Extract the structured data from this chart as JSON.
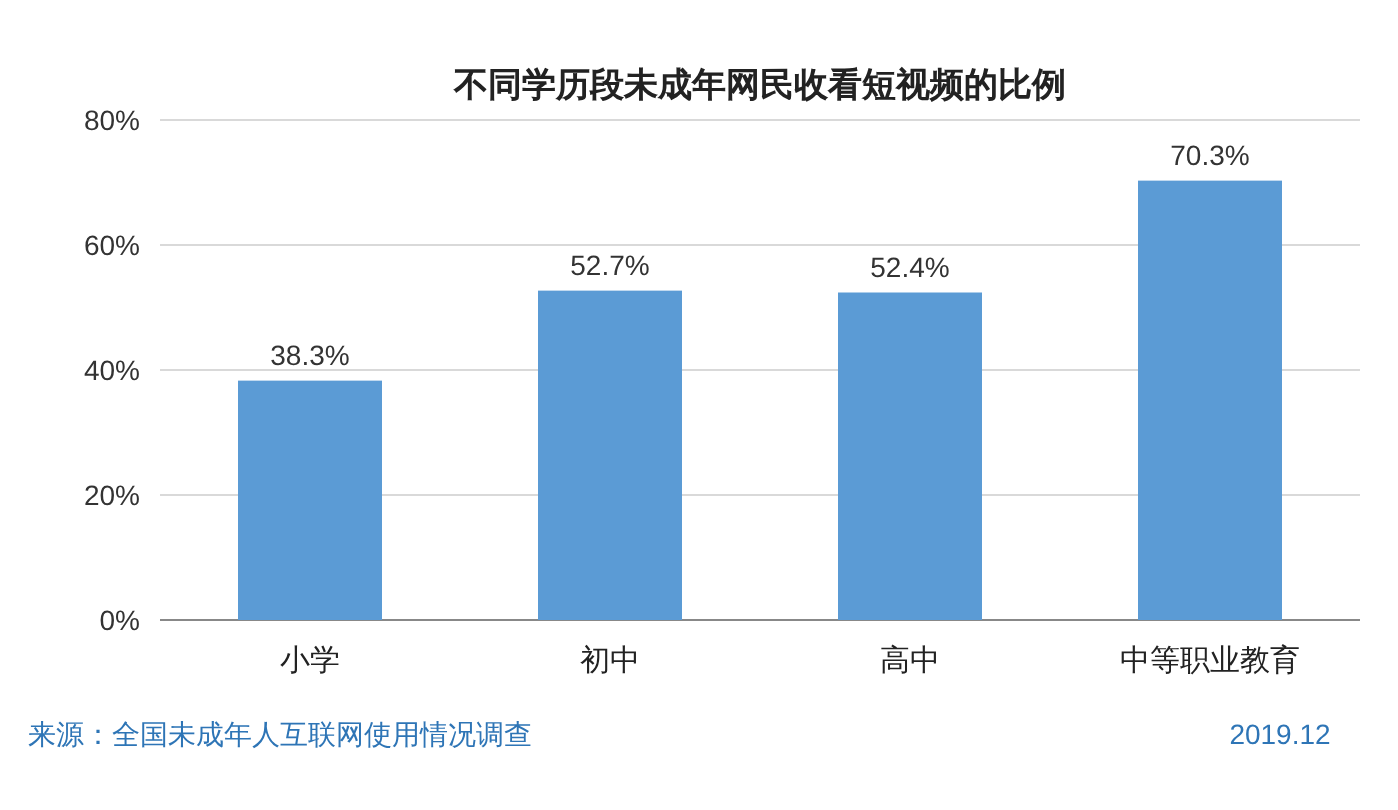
{
  "chart_data": {
    "type": "bar",
    "title": "不同学历段未成年网民收看短视频的比例",
    "categories": [
      "小学",
      "初中",
      "高中",
      "中等职业教育"
    ],
    "values": [
      38.3,
      52.7,
      52.4,
      70.3
    ],
    "value_labels": [
      "38.3%",
      "52.7%",
      "52.4%",
      "70.3%"
    ],
    "color": "#5b9bd5",
    "ylim": [
      0,
      80
    ],
    "yticks": [
      {
        "value": 0,
        "label": "0%"
      },
      {
        "value": 20,
        "label": "20%"
      },
      {
        "value": 40,
        "label": "40%"
      },
      {
        "value": 60,
        "label": "60%"
      },
      {
        "value": 80,
        "label": "80%"
      }
    ],
    "grid": "y",
    "annotations": [
      "来源：全国未成年人互联网使用情况调查",
      "2019.12"
    ]
  }
}
